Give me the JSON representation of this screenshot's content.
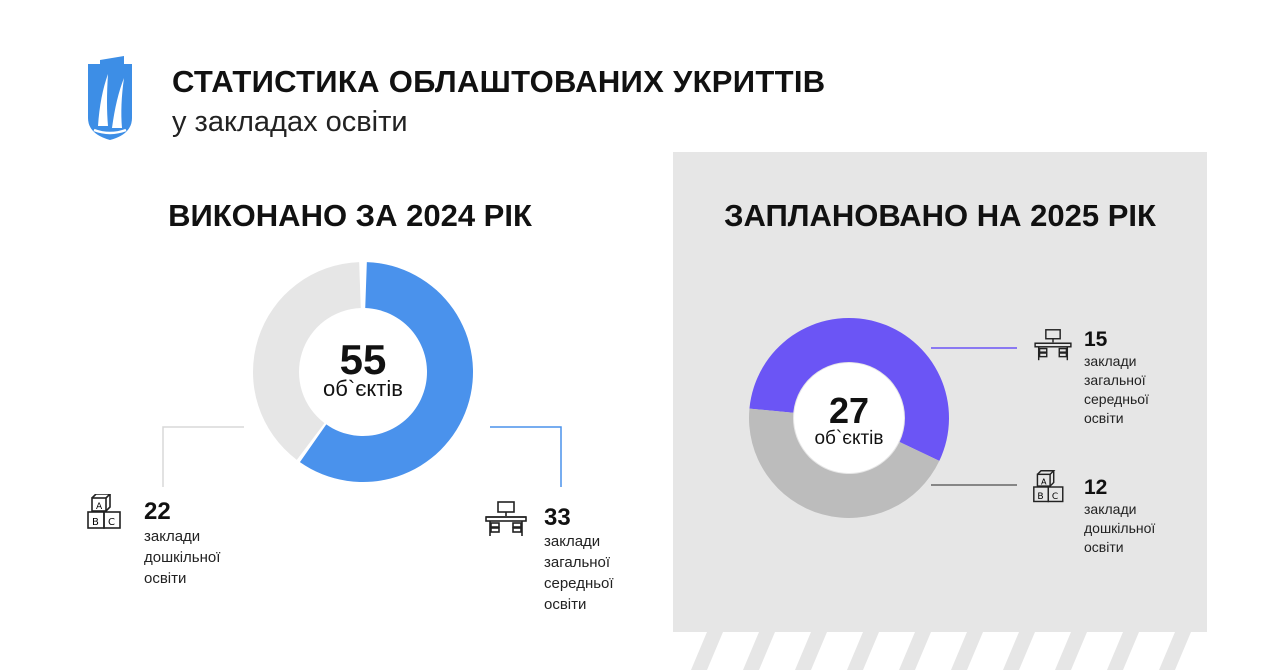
{
  "header": {
    "title": "СТАТИСТИКА ОБЛАШТОВАНИХ УКРИТТІВ",
    "subtitle": "у закладах освіти",
    "logo_icon": "city-coat-of-arms-icon"
  },
  "colors": {
    "primary_blue": "#4a92ec",
    "purple": "#6b55f5",
    "remainder_gray": "#e6e6e6",
    "dark_gray": "#bcbcbc",
    "panel_bg": "#e6e6e6"
  },
  "chart_data": [
    {
      "type": "pie",
      "title": "ВИКОНАНО ЗА 2024 РІК",
      "center_value": "55",
      "center_label": "об`єктів",
      "total": 55,
      "series": [
        {
          "value": 33,
          "number": "33",
          "label": "заклади\nзагальної\nсередньої\nосвіти",
          "icon": "school-desk-icon"
        },
        {
          "value": 22,
          "number": "22",
          "label": "заклади\nдошкільної\nосвіти",
          "icon": "abc-blocks-icon"
        }
      ]
    },
    {
      "type": "pie",
      "title": "ЗАПЛАНОВАНО НА 2025 РІК",
      "center_value": "27",
      "center_label": "об`єктів",
      "total": 27,
      "series": [
        {
          "value": 15,
          "number": "15",
          "label": "заклади\nзагальної\nсередньої\nосвіти",
          "icon": "school-desk-icon"
        },
        {
          "value": 12,
          "number": "12",
          "label": "заклади\nдошкільної\nосвіти",
          "icon": "abc-blocks-icon"
        }
      ]
    }
  ]
}
